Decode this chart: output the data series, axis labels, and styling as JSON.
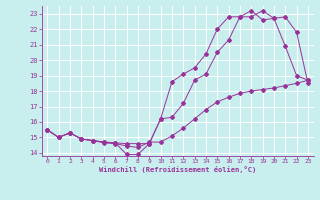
{
  "xlabel": "Windchill (Refroidissement éolien,°C)",
  "xlim": [
    -0.5,
    23.5
  ],
  "ylim": [
    13.8,
    23.5
  ],
  "yticks": [
    14,
    15,
    16,
    17,
    18,
    19,
    20,
    21,
    22,
    23
  ],
  "xticks": [
    0,
    1,
    2,
    3,
    4,
    5,
    6,
    7,
    8,
    9,
    10,
    11,
    12,
    13,
    14,
    15,
    16,
    17,
    18,
    19,
    20,
    21,
    22,
    23
  ],
  "bg_color": "#c8eeee",
  "grid_color": "#aadddd",
  "line_color": "#993399",
  "series1_x": [
    0,
    1,
    2,
    3,
    4,
    5,
    6,
    7,
    8,
    9,
    10,
    11,
    12,
    13,
    14,
    15,
    16,
    17,
    18,
    19,
    20,
    21,
    22,
    23
  ],
  "series1_y": [
    15.5,
    15.0,
    15.3,
    14.9,
    14.8,
    14.7,
    14.65,
    14.6,
    14.6,
    14.6,
    16.2,
    18.6,
    19.1,
    19.5,
    20.4,
    22.0,
    22.8,
    22.8,
    23.2,
    22.6,
    22.7,
    20.9,
    19.0,
    18.7
  ],
  "series2_x": [
    0,
    1,
    2,
    3,
    4,
    5,
    6,
    7,
    8,
    9,
    10,
    11,
    12,
    13,
    14,
    15,
    16,
    17,
    18,
    19,
    20,
    21,
    22,
    23
  ],
  "series2_y": [
    15.5,
    15.0,
    15.3,
    14.9,
    14.8,
    14.7,
    14.65,
    13.9,
    13.9,
    14.6,
    16.2,
    16.3,
    17.2,
    18.7,
    19.1,
    20.5,
    21.3,
    22.8,
    22.8,
    23.2,
    22.7,
    22.8,
    21.8,
    18.5
  ],
  "series3_x": [
    0,
    1,
    2,
    3,
    4,
    5,
    6,
    7,
    8,
    9,
    10,
    11,
    12,
    13,
    14,
    15,
    16,
    17,
    18,
    19,
    20,
    21,
    22,
    23
  ],
  "series3_y": [
    15.5,
    15.0,
    15.3,
    14.9,
    14.8,
    14.65,
    14.6,
    14.45,
    14.35,
    14.7,
    14.7,
    15.1,
    15.6,
    16.2,
    16.8,
    17.3,
    17.6,
    17.85,
    18.0,
    18.1,
    18.2,
    18.35,
    18.5,
    18.7
  ]
}
